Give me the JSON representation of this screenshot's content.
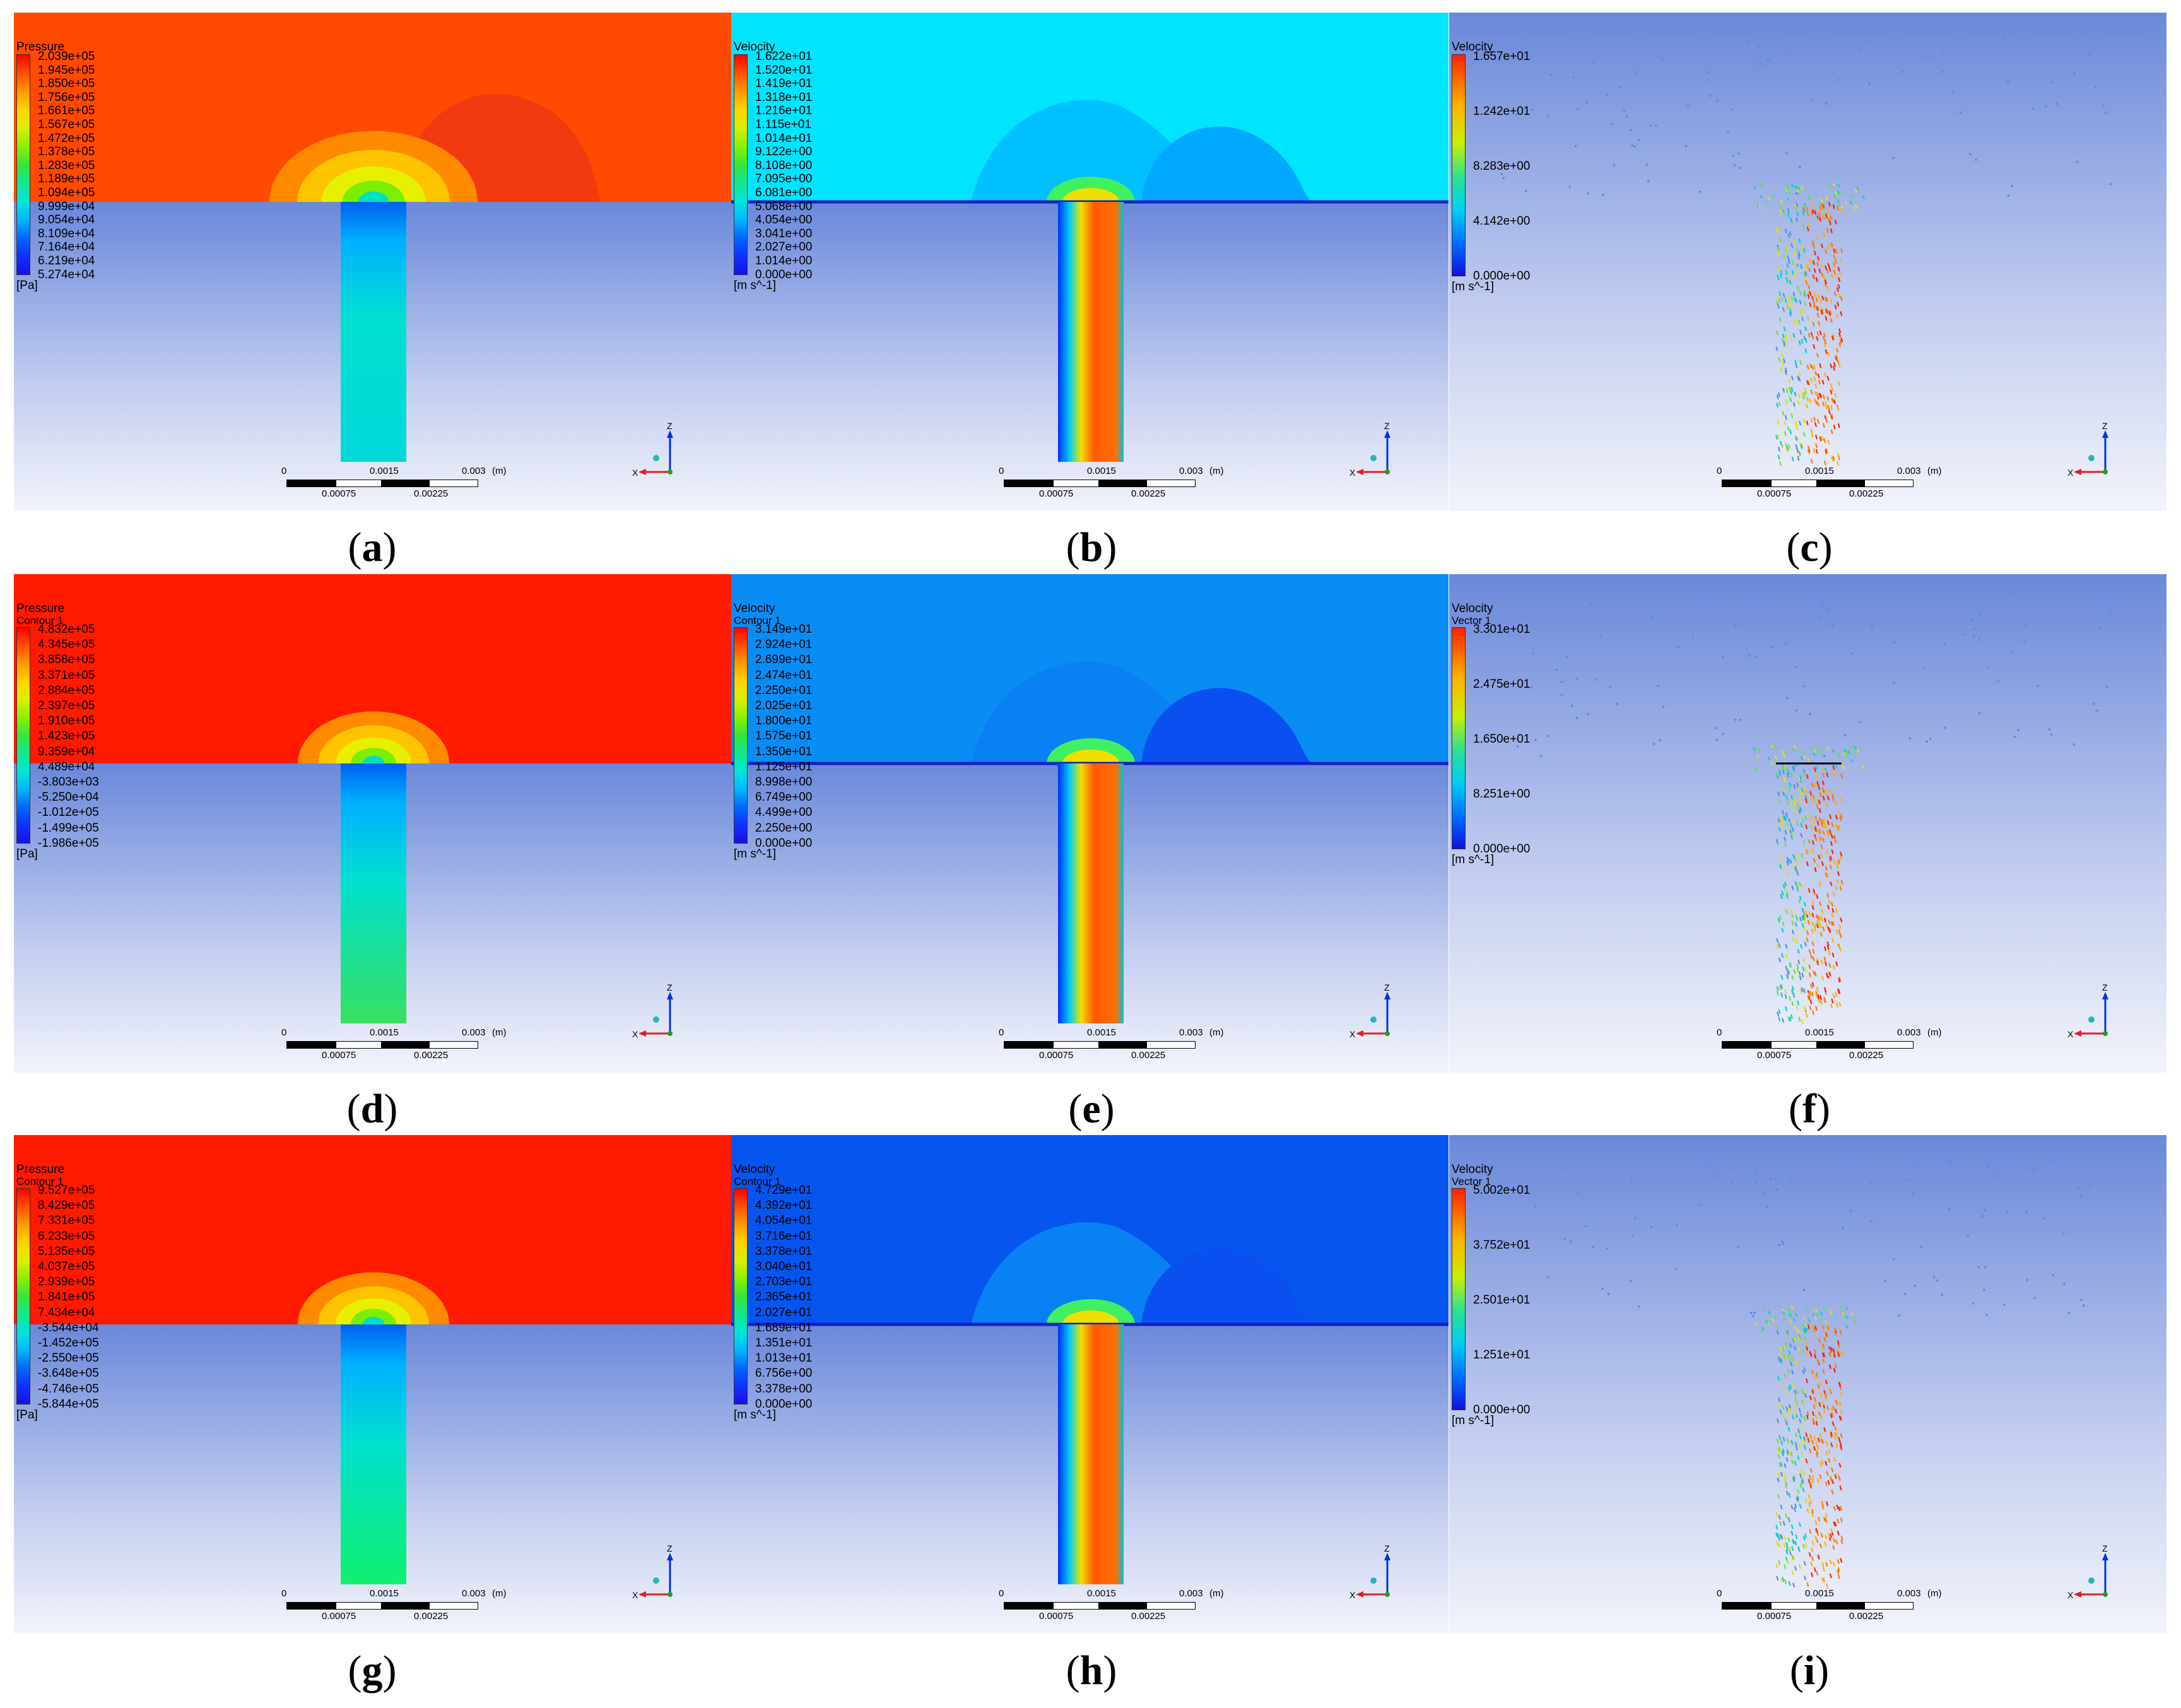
{
  "captions": [
    "a",
    "b",
    "c",
    "d",
    "e",
    "f",
    "g",
    "h",
    "i"
  ],
  "panels": [
    {
      "caption": "a",
      "kind": "pressure",
      "title": "Pressure",
      "subtitle": "",
      "unit": "[Pa]",
      "ticks": [
        "2.039e+05",
        "1.945e+05",
        "1.850e+05",
        "1.756e+05",
        "1.661e+05",
        "1.567e+05",
        "1.472e+05",
        "1.378e+05",
        "1.283e+05",
        "1.189e+05",
        "1.094e+05",
        "9.999e+04",
        "9.054e+04",
        "8.109e+04",
        "7.164e+04",
        "6.219e+04",
        "5.274e+04"
      ]
    },
    {
      "caption": "b",
      "kind": "velocity",
      "title": "Velocity",
      "subtitle": "",
      "unit": "[m s^-1]",
      "ticks": [
        "1.622e+01",
        "1.520e+01",
        "1.419e+01",
        "1.318e+01",
        "1.216e+01",
        "1.115e+01",
        "1.014e+01",
        "9.122e+00",
        "8.108e+00",
        "7.095e+00",
        "6.081e+00",
        "5.068e+00",
        "4.054e+00",
        "3.041e+00",
        "2.027e+00",
        "1.014e+00",
        "0.000e+00"
      ]
    },
    {
      "caption": "c",
      "kind": "vector",
      "title": "Velocity",
      "subtitle": "",
      "unit": "[m s^-1]",
      "ticks": [
        "1.657e+01",
        "1.242e+01",
        "8.283e+00",
        "4.142e+00",
        "0.000e+00"
      ]
    },
    {
      "caption": "d",
      "kind": "pressure",
      "title": "Pressure",
      "subtitle": "Contour 1",
      "unit": "[Pa]",
      "ticks": [
        "4.832e+05",
        "4.345e+05",
        "3.858e+05",
        "3.371e+05",
        "2.884e+05",
        "2.397e+05",
        "1.910e+05",
        "1.423e+05",
        "9.359e+04",
        "4.489e+04",
        "-3.803e+03",
        "-5.250e+04",
        "-1.012e+05",
        "-1.499e+05",
        "-1.986e+05"
      ]
    },
    {
      "caption": "e",
      "kind": "velocity",
      "title": "Velocity",
      "subtitle": "Contour 1",
      "unit": "[m s^-1]",
      "ticks": [
        "3.149e+01",
        "2.924e+01",
        "2.699e+01",
        "2.474e+01",
        "2.250e+01",
        "2.025e+01",
        "1.800e+01",
        "1.575e+01",
        "1.350e+01",
        "1.125e+01",
        "8.998e+00",
        "6.749e+00",
        "4.499e+00",
        "2.250e+00",
        "0.000e+00"
      ]
    },
    {
      "caption": "f",
      "kind": "vector",
      "title": "Velocity",
      "subtitle": "Vector 1",
      "unit": "[m s^-1]",
      "ticks": [
        "3.301e+01",
        "2.475e+01",
        "1.650e+01",
        "8.251e+00",
        "0.000e+00"
      ]
    },
    {
      "caption": "g",
      "kind": "pressure",
      "title": "Pressure",
      "subtitle": "Contour 1",
      "unit": "[Pa]",
      "ticks": [
        "9.527e+05",
        "8.429e+05",
        "7.331e+05",
        "6.233e+05",
        "5.135e+05",
        "4.037e+05",
        "2.939e+05",
        "1.841e+05",
        "7.434e+04",
        "-3.544e+04",
        "-1.452e+05",
        "-2.550e+05",
        "-3.648e+05",
        "-4.746e+05",
        "-5.844e+05"
      ]
    },
    {
      "caption": "h",
      "kind": "velocity",
      "title": "Velocity",
      "subtitle": "Contour 1",
      "unit": "[m s^-1]",
      "ticks": [
        "4.729e+01",
        "4.392e+01",
        "4.054e+01",
        "3.716e+01",
        "3.378e+01",
        "3.040e+01",
        "2.703e+01",
        "2.365e+01",
        "2.027e+01",
        "1.689e+01",
        "1.351e+01",
        "1.013e+01",
        "6.756e+00",
        "3.378e+00",
        "0.000e+00"
      ]
    },
    {
      "caption": "i",
      "kind": "vector",
      "title": "Velocity",
      "subtitle": "Vector 1",
      "unit": "[m s^-1]",
      "ticks": [
        "5.002e+01",
        "3.752e+01",
        "2.501e+01",
        "1.251e+01",
        "0.000e+00"
      ]
    }
  ],
  "scale_bar": {
    "top_labels": [
      "0",
      "0.0015",
      "0.003",
      "(m)"
    ],
    "bottom_labels": [
      "0.00075",
      "0.00225"
    ]
  },
  "axis_labels": {
    "x": "X",
    "z": "Z"
  },
  "colors": {
    "pressure_top": "#ff4a00",
    "pressure_top_high": "#ff1a00",
    "velocity_top": "#00e5ff",
    "velocity_mid": "#0a8cf5",
    "velocity_deep": "#0555ee",
    "bg_top": "#6a88da",
    "bg_bottom": "#f2f4fb"
  }
}
